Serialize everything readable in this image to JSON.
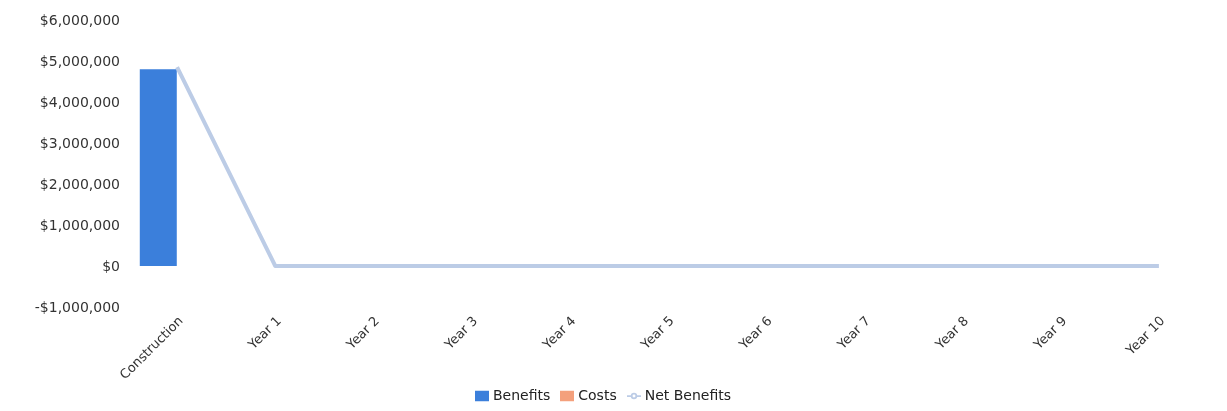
{
  "chart_data": {
    "type": "bar",
    "categories": [
      "Construction",
      "Year 1",
      "Year 2",
      "Year 3",
      "Year 4",
      "Year 5",
      "Year 6",
      "Year 7",
      "Year 8",
      "Year 9",
      "Year 10"
    ],
    "series": [
      {
        "name": "Benefits",
        "color": "#3b7fdb",
        "values": [
          4800000,
          0,
          0,
          0,
          0,
          0,
          0,
          0,
          0,
          0,
          0
        ]
      },
      {
        "name": "Costs",
        "color": "#f4a07c",
        "values": [
          0,
          0,
          0,
          0,
          0,
          0,
          0,
          0,
          0,
          0,
          0
        ]
      },
      {
        "name": "Net Benefits",
        "type": "line",
        "color": "#bccce6",
        "values": [
          4850000,
          0,
          0,
          0,
          0,
          0,
          0,
          0,
          0,
          0,
          0
        ]
      }
    ],
    "ylim": [
      -1000000,
      6000000
    ],
    "yticks": [
      {
        "value": -1000000,
        "label": "-$1,000,000"
      },
      {
        "value": 0,
        "label": "$0"
      },
      {
        "value": 1000000,
        "label": "$1,000,000"
      },
      {
        "value": 2000000,
        "label": "$2,000,000"
      },
      {
        "value": 3000000,
        "label": "$3,000,000"
      },
      {
        "value": 4000000,
        "label": "$4,000,000"
      },
      {
        "value": 5000000,
        "label": "$5,000,000"
      },
      {
        "value": 6000000,
        "label": "$6,000,000"
      }
    ],
    "grid": false,
    "legend": "bottom",
    "marker": "none"
  }
}
